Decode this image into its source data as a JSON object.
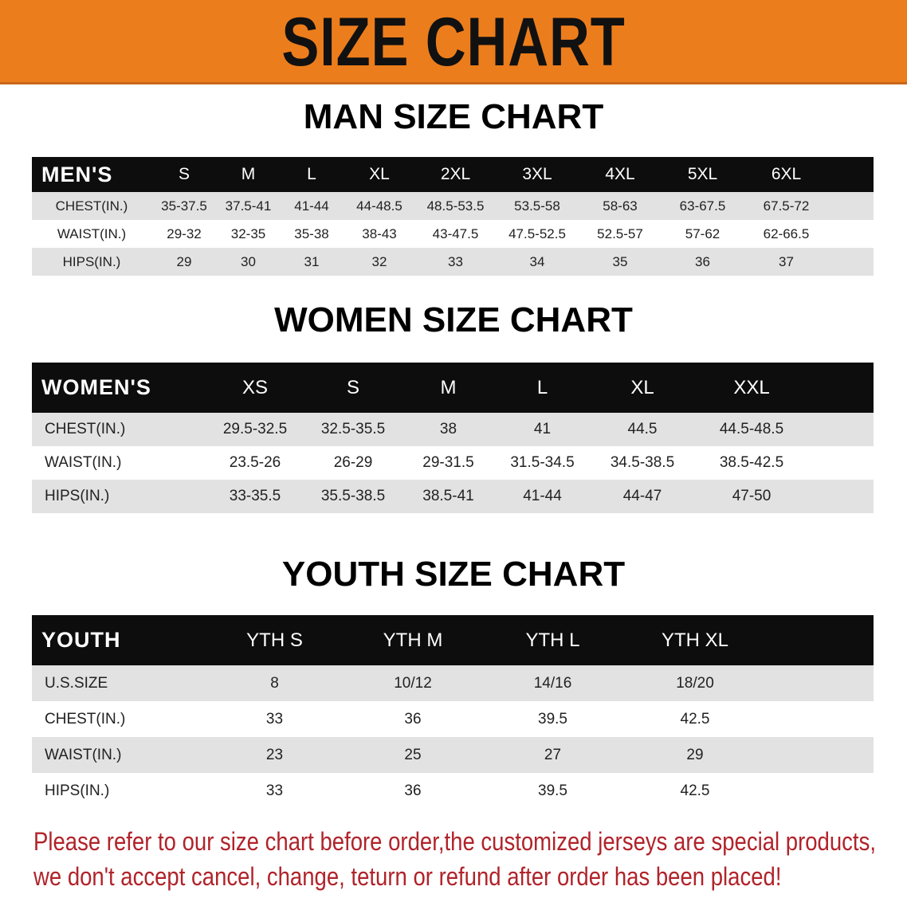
{
  "banner": {
    "title": "SIZE CHART",
    "color": "#ec7d1c"
  },
  "men": {
    "title": "MAN SIZE CHART",
    "header": "MEN'S",
    "sizes": [
      "S",
      "M",
      "L",
      "XL",
      "2XL",
      "3XL",
      "4XL",
      "5XL",
      "6XL"
    ],
    "rows": [
      {
        "label": "CHEST(IN.)",
        "values": [
          "35-37.5",
          "37.5-41",
          "41-44",
          "44-48.5",
          "48.5-53.5",
          "53.5-58",
          "58-63",
          "63-67.5",
          "67.5-72"
        ]
      },
      {
        "label": "WAIST(IN.)",
        "values": [
          "29-32",
          "32-35",
          "35-38",
          "38-43",
          "43-47.5",
          "47.5-52.5",
          "52.5-57",
          "57-62",
          "62-66.5"
        ]
      },
      {
        "label": "HIPS(IN.)",
        "values": [
          "29",
          "30",
          "31",
          "32",
          "33",
          "34",
          "35",
          "36",
          "37"
        ]
      }
    ]
  },
  "women": {
    "title": "WOMEN SIZE CHART",
    "header": "WOMEN'S",
    "sizes": [
      "XS",
      "S",
      "M",
      "L",
      "XL",
      "XXL"
    ],
    "rows": [
      {
        "label": "CHEST(IN.)",
        "values": [
          "29.5-32.5",
          "32.5-35.5",
          "38",
          "41",
          "44.5",
          "44.5-48.5"
        ]
      },
      {
        "label": "WAIST(IN.)",
        "values": [
          "23.5-26",
          "26-29",
          "29-31.5",
          "31.5-34.5",
          "34.5-38.5",
          "38.5-42.5"
        ]
      },
      {
        "label": "HIPS(IN.)",
        "values": [
          "33-35.5",
          "35.5-38.5",
          "38.5-41",
          "41-44",
          "44-47",
          "47-50"
        ]
      }
    ]
  },
  "youth": {
    "title": "YOUTH SIZE CHART",
    "header": "YOUTH",
    "sizes": [
      "YTH S",
      "YTH M",
      "YTH L",
      "YTH XL"
    ],
    "rows": [
      {
        "label": "U.S.SIZE",
        "values": [
          "8",
          "10/12",
          "14/16",
          "18/20"
        ]
      },
      {
        "label": "CHEST(IN.)",
        "values": [
          "33",
          "36",
          "39.5",
          "42.5"
        ]
      },
      {
        "label": "WAIST(IN.)",
        "values": [
          "23",
          "25",
          "27",
          "29"
        ]
      },
      {
        "label": "HIPS(IN.)",
        "values": [
          "33",
          "36",
          "39.5",
          "42.5"
        ]
      }
    ]
  },
  "notice": {
    "line1": "Please refer to our size chart before order,the customized jerseys are special products,",
    "line2": "we don't accept cancel, change, teturn or refund after order has been placed!",
    "color": "#b0232a"
  }
}
